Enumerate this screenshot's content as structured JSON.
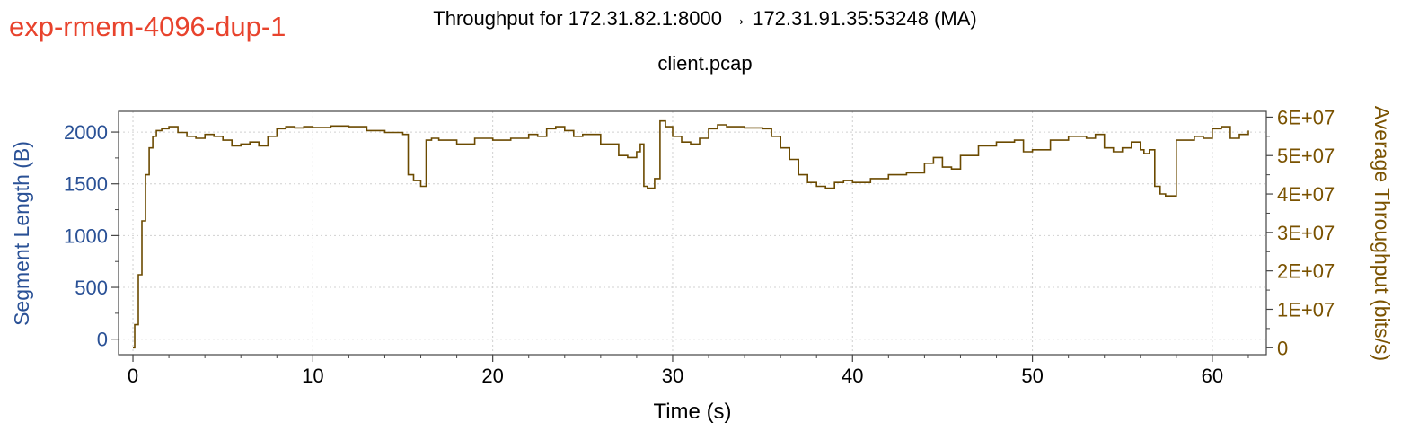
{
  "experiment_label": "exp-rmem-4096-dup-1",
  "colors": {
    "experiment_label": "#e8432d",
    "left_axis": "#2a5196",
    "right_axis": "#7a5200",
    "series": "#6b4a00",
    "grid": "#d0d0d0",
    "frame": "#444444",
    "text": "#000000"
  },
  "chart_data": {
    "type": "line",
    "title": "Throughput for 172.31.82.1:8000 → 172.31.91.35:53248 (MA)",
    "subtitle": "client.pcap",
    "xlabel": "Time (s)",
    "ylabel_left": "Segment Length (B)",
    "ylabel_right": "Average Throughput (bits/s)",
    "xlim": [
      -0.8,
      63
    ],
    "ylim_left": [
      -150,
      2200
    ],
    "ylim_right": [
      -1800000,
      61500000
    ],
    "x_ticks": [
      0,
      10,
      20,
      30,
      40,
      50,
      60
    ],
    "x_tick_labels": [
      "0",
      "10",
      "20",
      "30",
      "40",
      "50",
      "60"
    ],
    "y_left_ticks": [
      0,
      500,
      1000,
      1500,
      2000
    ],
    "y_left_tick_labels": [
      "0",
      "500",
      "1000",
      "1500",
      "2000"
    ],
    "y_right_ticks": [
      0,
      10000000,
      20000000,
      30000000,
      40000000,
      50000000,
      60000000
    ],
    "y_right_tick_labels": [
      "0",
      "1E+07",
      "2E+07",
      "3E+07",
      "4E+07",
      "5E+07",
      "6E+07"
    ],
    "grid": true,
    "series": [
      {
        "axis": "right",
        "style": "step",
        "x": [
          0,
          0.1,
          0.3,
          0.5,
          0.7,
          0.9,
          1.1,
          1.3,
          1.6,
          2.0,
          2.5,
          3.0,
          3.5,
          4.0,
          4.5,
          5.0,
          5.5,
          6.0,
          6.5,
          7.0,
          7.5,
          8.0,
          8.5,
          9.0,
          9.5,
          10.0,
          11.0,
          12.0,
          13.0,
          14.0,
          15.0,
          15.3,
          15.6,
          16.0,
          16.3,
          16.6,
          17.0,
          18.0,
          19.0,
          20.0,
          21.0,
          22.0,
          22.5,
          23.0,
          23.5,
          24.0,
          24.5,
          25.0,
          26.0,
          27.0,
          27.5,
          28.0,
          28.2,
          28.4,
          28.6,
          29.0,
          29.3,
          29.6,
          30.0,
          30.5,
          31.0,
          31.5,
          32.0,
          32.5,
          33.0,
          34.0,
          35.0,
          35.5,
          36.0,
          36.5,
          37.0,
          37.5,
          38.0,
          38.5,
          39.0,
          39.5,
          40.0,
          41.0,
          42.0,
          43.0,
          44.0,
          44.5,
          45.0,
          45.5,
          46.0,
          47.0,
          48.0,
          49.0,
          49.5,
          50.0,
          51.0,
          52.0,
          53.0,
          53.5,
          54.0,
          54.5,
          55.0,
          55.5,
          56.0,
          56.2,
          56.5,
          56.8,
          57.1,
          57.4,
          58.0,
          59.0,
          59.5,
          60.0,
          60.5,
          61.0,
          61.5,
          62.0
        ],
        "y": [
          0,
          6000000,
          19000000,
          33000000,
          45000000,
          52000000,
          55000000,
          56500000,
          57000000,
          57500000,
          56000000,
          55000000,
          54500000,
          55500000,
          55000000,
          54000000,
          52500000,
          53000000,
          53500000,
          52500000,
          55000000,
          57000000,
          57500000,
          57200000,
          57500000,
          57300000,
          57700000,
          57500000,
          56500000,
          56000000,
          55500000,
          45000000,
          43500000,
          42000000,
          54000000,
          54500000,
          54000000,
          53000000,
          54500000,
          54000000,
          54500000,
          55500000,
          55000000,
          57000000,
          57500000,
          56500000,
          55000000,
          55500000,
          53000000,
          50000000,
          49500000,
          51000000,
          53000000,
          42000000,
          41500000,
          44000000,
          59000000,
          57500000,
          55000000,
          53500000,
          53000000,
          54500000,
          57000000,
          58000000,
          57500000,
          57200000,
          57000000,
          55000000,
          52000000,
          49000000,
          45000000,
          43000000,
          42000000,
          41500000,
          43000000,
          43500000,
          43000000,
          44000000,
          45000000,
          45500000,
          48000000,
          49500000,
          47000000,
          46500000,
          50000000,
          52500000,
          53500000,
          54000000,
          51000000,
          51500000,
          54000000,
          55000000,
          54500000,
          55500000,
          52000000,
          51000000,
          52000000,
          53500000,
          51500000,
          50500000,
          51500000,
          42000000,
          40000000,
          39500000,
          54000000,
          55000000,
          54500000,
          57000000,
          57500000,
          54500000,
          55500000,
          56500000
        ]
      }
    ]
  }
}
